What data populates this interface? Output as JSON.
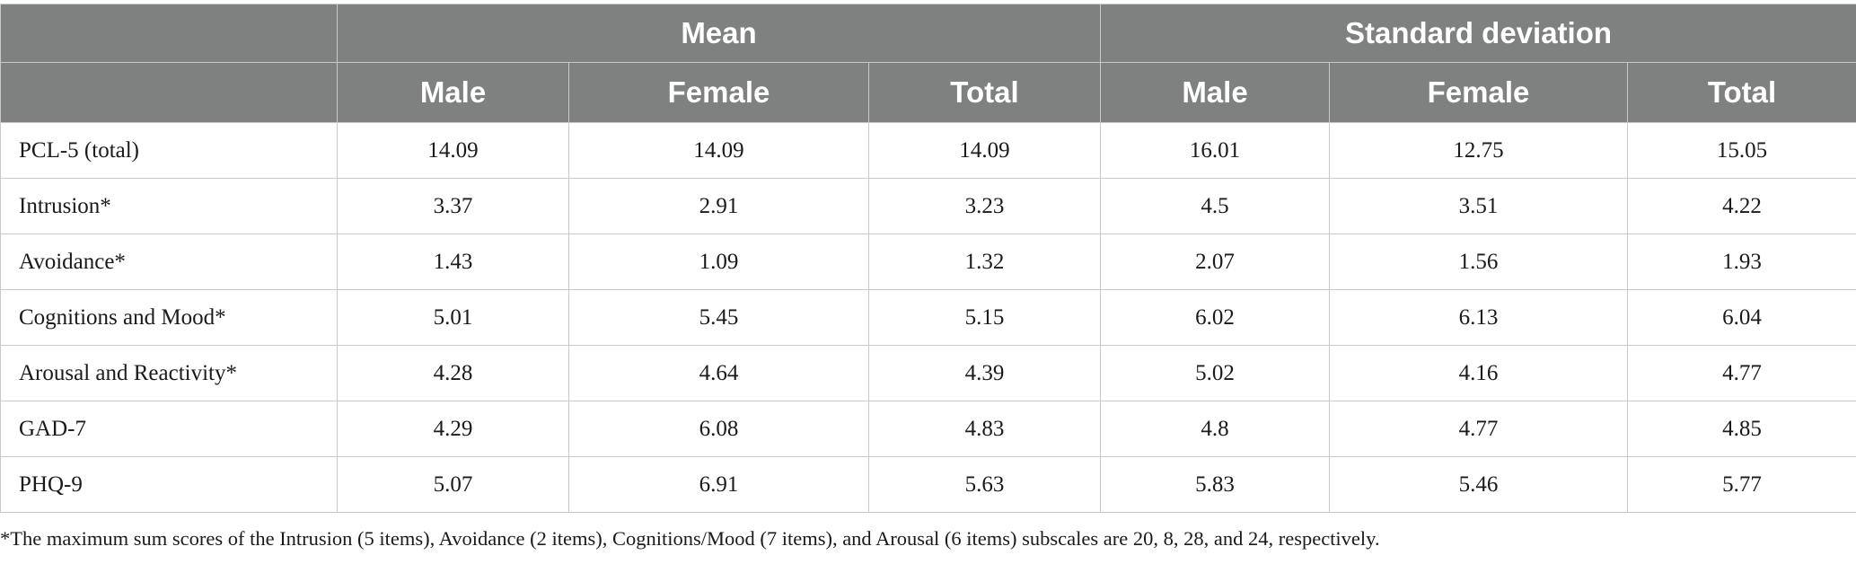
{
  "header": {
    "group_mean": "Mean",
    "group_sd": "Standard deviation",
    "sub": [
      "Male",
      "Female",
      "Total",
      "Male",
      "Female",
      "Total"
    ]
  },
  "rows": [
    {
      "label": "PCL-5 (total)",
      "values": [
        "14.09",
        "14.09",
        "14.09",
        "16.01",
        "12.75",
        "15.05"
      ]
    },
    {
      "label": "Intrusion*",
      "values": [
        "3.37",
        "2.91",
        "3.23",
        "4.5",
        "3.51",
        "4.22"
      ]
    },
    {
      "label": "Avoidance*",
      "values": [
        "1.43",
        "1.09",
        "1.32",
        "2.07",
        "1.56",
        "1.93"
      ]
    },
    {
      "label": "Cognitions and Mood*",
      "values": [
        "5.01",
        "5.45",
        "5.15",
        "6.02",
        "6.13",
        "6.04"
      ]
    },
    {
      "label": "Arousal and Reactivity*",
      "values": [
        "4.28",
        "4.64",
        "4.39",
        "5.02",
        "4.16",
        "4.77"
      ]
    },
    {
      "label": "GAD-7",
      "values": [
        "4.29",
        "6.08",
        "4.83",
        "4.8",
        "4.77",
        "4.85"
      ]
    },
    {
      "label": "PHQ-9",
      "values": [
        "5.07",
        "6.91",
        "5.63",
        "5.83",
        "5.46",
        "5.77"
      ]
    }
  ],
  "footnote": "*The maximum sum scores of the Intrusion (5 items), Avoidance (2 items), Cognitions/Mood (7 items), and Arousal (6 items) subscales are 20, 8, 28, and 24, respectively."
}
